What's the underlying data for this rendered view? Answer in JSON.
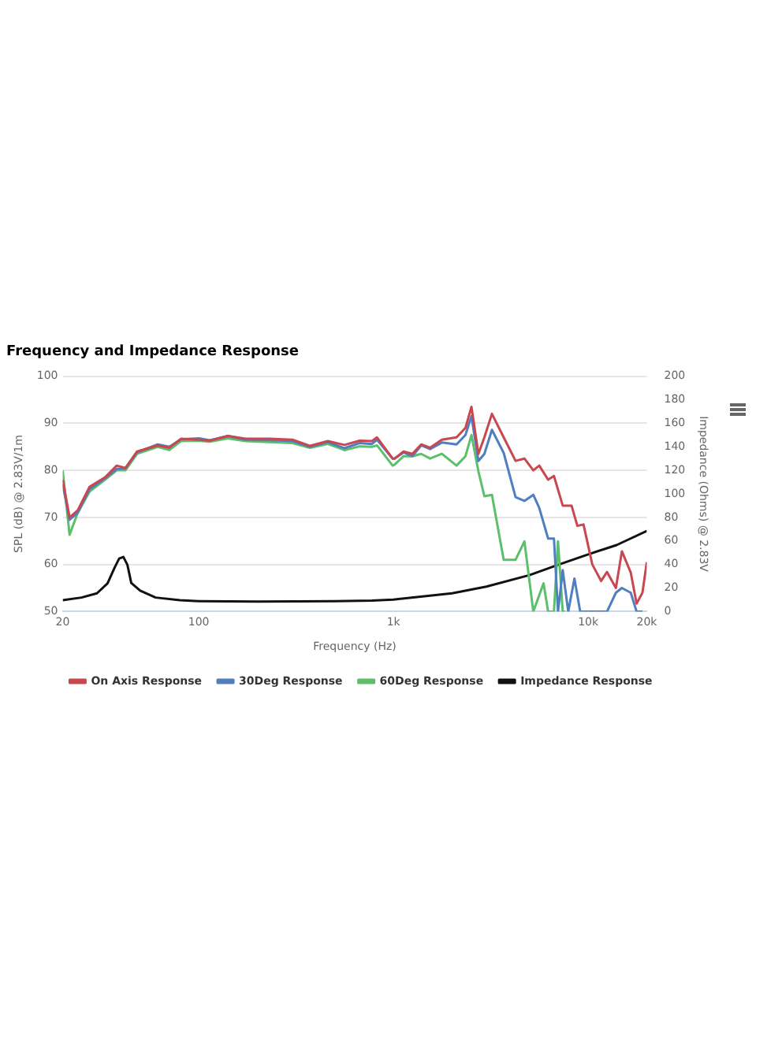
{
  "chart_data": {
    "type": "line",
    "title": "Frequency and Impedance Response",
    "xlabel": "Frequency (Hz)",
    "ylabel": "SPL (dB) @ 2.83V/1m",
    "y2label": "Impedance (Ohms) @ 2.83V",
    "log": "x",
    "grid": "y",
    "legend": "bottom",
    "marker": "none",
    "line_style": "solid",
    "xlim": [
      20,
      20000
    ],
    "xticks": [
      20,
      100,
      {
        "value": 1000,
        "label": "1k"
      },
      {
        "value": 10000,
        "label": "10k"
      },
      {
        "value": 20000,
        "label": "20k"
      }
    ],
    "ylim": [
      50,
      100
    ],
    "yticks": [
      50,
      60,
      70,
      80,
      90,
      100
    ],
    "y2lim": [
      0,
      200
    ],
    "y2ticks": [
      0,
      20,
      40,
      60,
      80,
      100,
      120,
      140,
      160,
      180,
      200
    ],
    "series": [
      {
        "name": "On Axis Response",
        "color": "#c9474f",
        "x": [
          20,
          21.7,
          23.9,
          27.5,
          33,
          37.9,
          42,
          48.2,
          61.5,
          70.6,
          81,
          100,
          114,
          141,
          174,
          230,
          303,
          373,
          460,
          560,
          670,
          775,
          823,
          990,
          1014,
          1126,
          1250,
          1388,
          1541,
          1772,
          2108,
          2343,
          2515,
          2730,
          2930,
          3204,
          3682,
          4237,
          4705,
          5226,
          5607,
          6226,
          6672,
          7400,
          8216,
          8800,
          9462,
          10500,
          11650,
          12500,
          13880,
          14900,
          16540,
          17730,
          19000,
          20000
        ],
        "values": [
          78,
          70,
          71.5,
          76.5,
          78.5,
          81,
          80.5,
          84,
          85.3,
          84.8,
          86.7,
          86.5,
          86.3,
          87.3,
          86.7,
          86.7,
          86.5,
          85.2,
          86.2,
          85.4,
          86.3,
          86.2,
          87,
          82.5,
          82.5,
          84,
          83.5,
          85.5,
          84.8,
          86.5,
          87,
          89,
          93.5,
          83.5,
          87,
          92,
          87,
          82,
          82.5,
          80,
          81,
          78,
          78.8,
          72.5,
          72.5,
          68.2,
          68.5,
          60,
          56.5,
          58.4,
          55,
          62.8,
          58.3,
          51.7,
          54,
          60.5
        ],
        "axis": "y"
      },
      {
        "name": "30Deg Response",
        "color": "#4f7fc0",
        "x": [
          20,
          21.7,
          23.9,
          27.5,
          33,
          37.9,
          42,
          48.2,
          61.5,
          70.6,
          81,
          100,
          114,
          141,
          174,
          230,
          303,
          373,
          460,
          560,
          670,
          775,
          823,
          990,
          1014,
          1126,
          1250,
          1388,
          1541,
          1772,
          2108,
          2343,
          2515,
          2730,
          2930,
          3204,
          3682,
          4237,
          4705,
          5226,
          5607,
          6226,
          6672,
          7000,
          7400,
          7900,
          8500,
          9100,
          12500,
          13880,
          14900,
          16540,
          17730,
          19000
        ],
        "values": [
          77,
          69.5,
          71,
          76,
          78.3,
          80.3,
          80.4,
          83.8,
          85.5,
          85,
          86.6,
          86.8,
          86.4,
          87.3,
          86.5,
          86.4,
          86.2,
          85,
          86,
          84.7,
          85.8,
          85.6,
          86.5,
          82.5,
          82.5,
          83.8,
          83,
          85.3,
          84.5,
          85.9,
          85.5,
          87.5,
          91.5,
          82,
          83.5,
          88.6,
          83.7,
          74.3,
          73.5,
          74.8,
          72,
          65.5,
          65.5,
          50,
          58.8,
          50,
          57,
          50,
          50,
          54,
          55,
          54,
          50,
          50
        ],
        "axis": "y"
      },
      {
        "name": "60Deg Response",
        "color": "#5cbf6a",
        "x": [
          20,
          21.7,
          23.9,
          27.5,
          33,
          37.9,
          42,
          48.2,
          61.5,
          70.6,
          81,
          100,
          114,
          141,
          174,
          230,
          303,
          373,
          460,
          560,
          670,
          775,
          823,
          990,
          1014,
          1126,
          1250,
          1388,
          1541,
          1772,
          2108,
          2343,
          2515,
          2730,
          2930,
          3204,
          3682,
          4237,
          4705,
          5226,
          5900,
          6226,
          6672,
          7000,
          7400,
          7600
        ],
        "values": [
          80,
          66.3,
          71,
          75.5,
          78,
          80,
          80,
          83.5,
          85,
          84.3,
          86.2,
          86.3,
          86.1,
          86.8,
          86.2,
          86,
          85.8,
          84.8,
          85.6,
          84.3,
          85.1,
          85,
          85.3,
          81,
          81.2,
          83,
          83,
          83.5,
          82.5,
          83.5,
          81,
          83,
          87.5,
          79.8,
          74.5,
          74.8,
          61,
          61,
          64.9,
          50,
          56,
          50,
          50,
          64.9,
          50,
          50
        ],
        "axis": "y"
      },
      {
        "name": "Impedance Response",
        "color": "#111111",
        "x": [
          20,
          25,
          30,
          34,
          37,
          39,
          41,
          43,
          45,
          50,
          60,
          80,
          100,
          200,
          500,
          775,
          1000,
          2000,
          3000,
          5000,
          7000,
          10000,
          14000,
          20000
        ],
        "values": [
          9.7,
          11.9,
          15.5,
          24,
          37.5,
          45,
          46.4,
          39.7,
          24.3,
          17.7,
          11.9,
          9.7,
          8.8,
          8.4,
          8.8,
          9.3,
          10.2,
          15.5,
          21.2,
          31,
          39.7,
          48.6,
          56.5,
          68.4
        ],
        "axis": "y2"
      }
    ]
  }
}
